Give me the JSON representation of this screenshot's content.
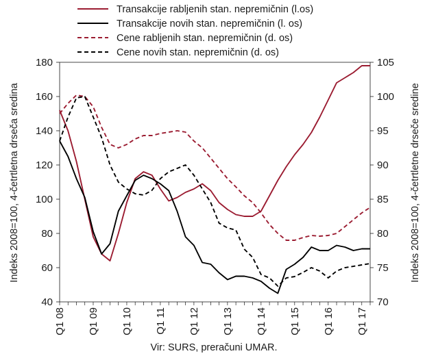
{
  "chart_data": {
    "type": "line",
    "title": "",
    "source": "Vir: SURS, preračuni UMAR.",
    "ylabel_left": "Indeks 2008=100, 4-četrtletna drseča sredina",
    "ylabel_right": "Indeks 2008=100, 4-četrtletne drseče sredine",
    "ylim_left": [
      40,
      180
    ],
    "ylim_right": [
      70,
      105
    ],
    "yticks_left": [
      "40",
      "60",
      "80",
      "100",
      "120",
      "140",
      "160",
      "180"
    ],
    "yticks_right": [
      "70",
      "75",
      "80",
      "85",
      "90",
      "95",
      "100",
      "105"
    ],
    "x_tick_labels": [
      "Q1 08",
      "Q1 09",
      "Q1 10",
      "Q1 11",
      "Q1 12",
      "Q1 13",
      "Q1 14",
      "Q1 15",
      "Q1 16",
      "Q1 17"
    ],
    "x": [
      "Q1 08",
      "Q2 08",
      "Q3 08",
      "Q4 08",
      "Q1 09",
      "Q2 09",
      "Q3 09",
      "Q4 09",
      "Q1 10",
      "Q2 10",
      "Q3 10",
      "Q4 10",
      "Q1 11",
      "Q2 11",
      "Q3 11",
      "Q4 11",
      "Q1 12",
      "Q2 12",
      "Q3 12",
      "Q4 12",
      "Q1 13",
      "Q2 13",
      "Q3 13",
      "Q4 13",
      "Q1 14",
      "Q2 14",
      "Q3 14",
      "Q4 14",
      "Q1 15",
      "Q2 15",
      "Q3 15",
      "Q4 15",
      "Q1 16",
      "Q2 16",
      "Q3 16",
      "Q4 16",
      "Q1 17",
      "Q2 17"
    ],
    "grid": false,
    "legend_position": "top",
    "series": [
      {
        "name": "Transakcije rabljenih stan. nepremičnin (l.os)",
        "axis": "left",
        "style": "solid",
        "color": "#9b1c31",
        "values": [
          152,
          140,
          122,
          100,
          78,
          68,
          64,
          80,
          98,
          112,
          116,
          114,
          106,
          99,
          101,
          104,
          106,
          109,
          105,
          98,
          94,
          91,
          90,
          90,
          93,
          102,
          111,
          119,
          126,
          132,
          139,
          148,
          158,
          168,
          171,
          174,
          178,
          178
        ]
      },
      {
        "name": "Transakcije novih stan. nepremičnin (l. os)",
        "axis": "left",
        "style": "solid",
        "color": "#000000",
        "values": [
          134,
          125,
          112,
          101,
          81,
          68,
          74,
          93,
          102,
          111,
          114,
          112,
          109,
          105,
          93,
          78,
          73,
          63,
          62,
          57,
          53,
          55,
          55,
          54,
          52,
          48,
          45,
          59,
          62,
          66,
          72,
          70,
          70,
          73,
          72,
          70,
          71,
          71
        ]
      },
      {
        "name": "Cene rabljenih stan. nepremičnin (d. os)",
        "axis": "right",
        "style": "dashed",
        "color": "#9b1c31",
        "values": [
          97.5,
          99,
          100.2,
          100,
          98.5,
          95.5,
          93,
          92.5,
          93,
          93.8,
          94.3,
          94.3,
          94.6,
          94.8,
          95,
          94.8,
          93.5,
          92.5,
          91,
          89.5,
          88,
          86.8,
          85.5,
          84.5,
          83,
          81.3,
          80,
          79,
          79,
          79.4,
          79.7,
          79.6,
          79.7,
          80,
          81,
          82,
          83,
          83.8
        ]
      },
      {
        "name": "Cene novih stan. nepremičnin (d. os)",
        "axis": "right",
        "style": "dashed",
        "color": "#000000",
        "values": [
          93.5,
          97,
          99.8,
          100,
          97,
          94,
          90,
          87.5,
          86.5,
          85.8,
          85.6,
          86.3,
          88,
          89,
          89.5,
          90,
          88.5,
          86.5,
          84.5,
          81.5,
          80.8,
          80.5,
          77.7,
          76.5,
          74,
          73.5,
          72.3,
          73.5,
          73.7,
          74.3,
          75,
          74.5,
          73.5,
          74.5,
          75,
          75.2,
          75.4,
          75.6
        ]
      }
    ]
  }
}
